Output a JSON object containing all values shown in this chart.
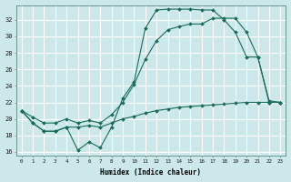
{
  "xlabel": "Humidex (Indice chaleur)",
  "bg_color": "#cce8ea",
  "grid_color": "#ffffff",
  "line_color": "#1a6b5a",
  "xlim": [
    -0.5,
    23.5
  ],
  "ylim": [
    15.5,
    33.8
  ],
  "ytick_values": [
    16,
    18,
    20,
    22,
    24,
    26,
    28,
    30,
    32
  ],
  "line1_y": [
    21.0,
    19.5,
    18.5,
    18.5,
    19.0,
    16.2,
    17.2,
    16.5,
    19.0,
    22.5,
    24.5,
    31.0,
    33.2,
    33.3,
    33.3,
    33.3,
    33.2,
    33.2,
    32.0,
    30.5,
    27.5,
    27.5,
    22.0,
    22.0
  ],
  "line2_y": [
    21.0,
    20.2,
    19.5,
    19.5,
    20.0,
    19.5,
    19.8,
    19.5,
    20.5,
    22.0,
    24.2,
    27.2,
    29.5,
    30.8,
    31.2,
    31.5,
    31.5,
    32.2,
    32.2,
    32.2,
    30.5,
    27.5,
    22.2,
    22.0
  ],
  "line3_y": [
    21.0,
    19.5,
    18.5,
    18.5,
    19.0,
    19.0,
    19.2,
    19.0,
    19.5,
    20.0,
    20.3,
    20.7,
    21.0,
    21.2,
    21.4,
    21.5,
    21.6,
    21.7,
    21.8,
    21.9,
    22.0,
    22.0,
    22.0,
    22.0
  ]
}
